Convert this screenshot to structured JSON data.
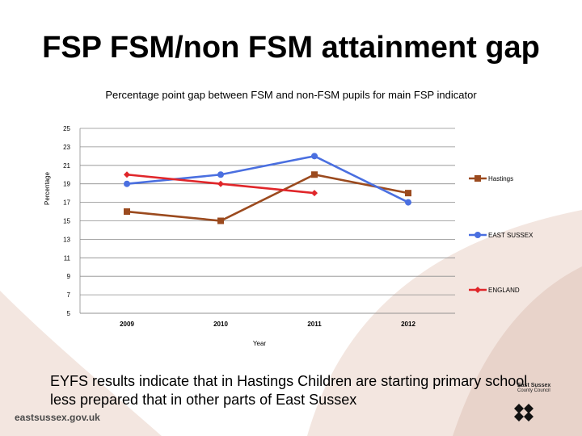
{
  "slide": {
    "title": "FSP FSM/non FSM attainment gap",
    "caption": "EYFS results indicate that in Hastings Children are starting primary school less prepared that in other parts of East Sussex",
    "footer_url": "eastsussex.gov.uk",
    "logo": {
      "name": "East Sussex",
      "sub": "County Council"
    },
    "colors": {
      "decor": "#e8d3ca",
      "decor_light": "#f3e6e0"
    }
  },
  "chart_data": {
    "type": "line",
    "title": "Percentage point gap between FSM and non-FSM pupils for main FSP indicator",
    "xlabel": "Year",
    "ylabel": "Percentage",
    "categories": [
      "2009",
      "2010",
      "2011",
      "2012"
    ],
    "ylim": [
      5,
      25
    ],
    "yticks": [
      5,
      7,
      9,
      11,
      13,
      15,
      17,
      19,
      21,
      23,
      25
    ],
    "grid": true,
    "legend_placement": "right",
    "series": [
      {
        "name": "Hastings",
        "values": [
          16,
          15,
          20,
          18
        ],
        "color": "#9b4a1e",
        "marker": "square"
      },
      {
        "name": "EAST SUSSEX",
        "values": [
          19,
          20,
          22,
          17
        ],
        "color": "#4a6fe0",
        "marker": "circle"
      },
      {
        "name": "ENGLAND",
        "values": [
          20,
          19,
          18,
          null
        ],
        "color": "#e0262a",
        "marker": "diamond"
      }
    ]
  }
}
